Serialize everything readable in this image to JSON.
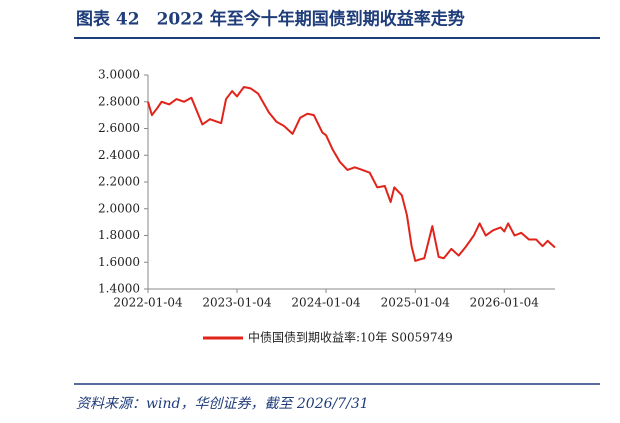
{
  "chart_data": {
    "type": "line",
    "title": "图表 42　2022 年至今十年期国债到期收益率走势",
    "source": "资料来源：wind，华创证券，截至 2026/7/31",
    "x": [
      "2022-01-04",
      "2022-01-20",
      "2022-02-10",
      "2022-03-01",
      "2022-04-01",
      "2022-05-01",
      "2022-06-01",
      "2022-07-01",
      "2022-08-15",
      "2022-09-15",
      "2022-10-31",
      "2022-11-20",
      "2022-12-15",
      "2023-01-04",
      "2023-02-01",
      "2023-03-01",
      "2023-04-01",
      "2023-05-15",
      "2023-06-15",
      "2023-07-15",
      "2023-08-20",
      "2023-09-20",
      "2023-10-20",
      "2023-11-15",
      "2023-12-20",
      "2024-01-04",
      "2024-02-01",
      "2024-03-01",
      "2024-04-01",
      "2024-05-01",
      "2024-06-01",
      "2024-07-01",
      "2024-08-01",
      "2024-09-01",
      "2024-09-25",
      "2024-10-10",
      "2024-11-10",
      "2024-12-01",
      "2024-12-20",
      "2025-01-04",
      "2025-01-20",
      "2025-02-10",
      "2025-03-15",
      "2025-04-10",
      "2025-05-01",
      "2025-06-01",
      "2025-07-01",
      "2025-08-01",
      "2025-09-01",
      "2025-09-25",
      "2025-10-20",
      "2025-11-20",
      "2025-12-20",
      "2026-01-04",
      "2026-01-20",
      "2026-02-15",
      "2026-03-15",
      "2026-04-15",
      "2026-05-15",
      "2026-06-10",
      "2026-07-01",
      "2026-07-31"
    ],
    "series": [
      {
        "name": "中债国债到期收益率:10年 S0059749",
        "color": "#e2231a",
        "values": [
          2.8,
          2.7,
          2.75,
          2.8,
          2.78,
          2.82,
          2.8,
          2.83,
          2.63,
          2.67,
          2.64,
          2.82,
          2.88,
          2.84,
          2.91,
          2.9,
          2.86,
          2.72,
          2.65,
          2.62,
          2.56,
          2.68,
          2.71,
          2.7,
          2.57,
          2.55,
          2.44,
          2.35,
          2.29,
          2.31,
          2.29,
          2.27,
          2.16,
          2.17,
          2.05,
          2.16,
          2.1,
          1.95,
          1.72,
          1.61,
          1.62,
          1.63,
          1.87,
          1.64,
          1.63,
          1.7,
          1.65,
          1.72,
          1.8,
          1.89,
          1.8,
          1.84,
          1.86,
          1.83,
          1.89,
          1.8,
          1.82,
          1.77,
          1.77,
          1.72,
          1.76,
          1.71
        ]
      }
    ],
    "xlim": [
      "2022-01-04",
      "2026-07-31"
    ],
    "xticks": [
      "2022-01-04",
      "2023-01-04",
      "2024-01-04",
      "2025-01-04",
      "2026-01-04"
    ],
    "ylim": [
      1.4,
      3.0
    ],
    "yticks": [
      {
        "value": 1.4,
        "label": "1.4000"
      },
      {
        "value": 1.6,
        "label": "1.6000"
      },
      {
        "value": 1.8,
        "label": "1.8000"
      },
      {
        "value": 2.0,
        "label": "2.0000"
      },
      {
        "value": 2.2,
        "label": "2.2000"
      },
      {
        "value": 2.4,
        "label": "2.4000"
      },
      {
        "value": 2.6,
        "label": "2.6000"
      },
      {
        "value": 2.8,
        "label": "2.8000"
      },
      {
        "value": 3.0,
        "label": "3.0000"
      }
    ],
    "grid": false
  }
}
